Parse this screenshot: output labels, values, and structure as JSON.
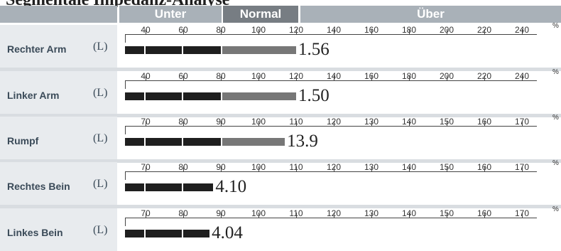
{
  "page_title": "Segmentale Impedanz-Analyse",
  "header": {
    "blank": "",
    "under": "Unter",
    "normal": "Normal",
    "over": "Über"
  },
  "percent_symbol": "%",
  "rows": [
    {
      "name": "Rechter Arm",
      "unit": "(L)",
      "value": "1.56",
      "percent": 125,
      "ticks": [
        "40",
        "60",
        "80",
        "100",
        "120",
        "140",
        "160",
        "180",
        "200",
        "220",
        "240"
      ]
    },
    {
      "name": "Linker Arm",
      "unit": "(L)",
      "value": "1.50",
      "percent": 120,
      "ticks": [
        "40",
        "60",
        "80",
        "100",
        "120",
        "140",
        "160",
        "180",
        "200",
        "220",
        "240"
      ]
    },
    {
      "name": "Rumpf",
      "unit": "(L)",
      "value": "13.9",
      "percent": 107,
      "ticks": [
        "70",
        "80",
        "90",
        "100",
        "110",
        "120",
        "130",
        "140",
        "150",
        "160",
        "170"
      ]
    },
    {
      "name": "Rechtes Bein",
      "unit": "(L)",
      "value": "4.10",
      "percent": 88,
      "ticks": [
        "70",
        "80",
        "90",
        "100",
        "110",
        "120",
        "130",
        "140",
        "150",
        "160",
        "170"
      ]
    },
    {
      "name": "Linkes Bein",
      "unit": "(L)",
      "value": "4.04",
      "percent": 87,
      "ticks": [
        "70",
        "80",
        "90",
        "100",
        "110",
        "120",
        "130",
        "140",
        "150",
        "160",
        "170"
      ]
    }
  ]
}
